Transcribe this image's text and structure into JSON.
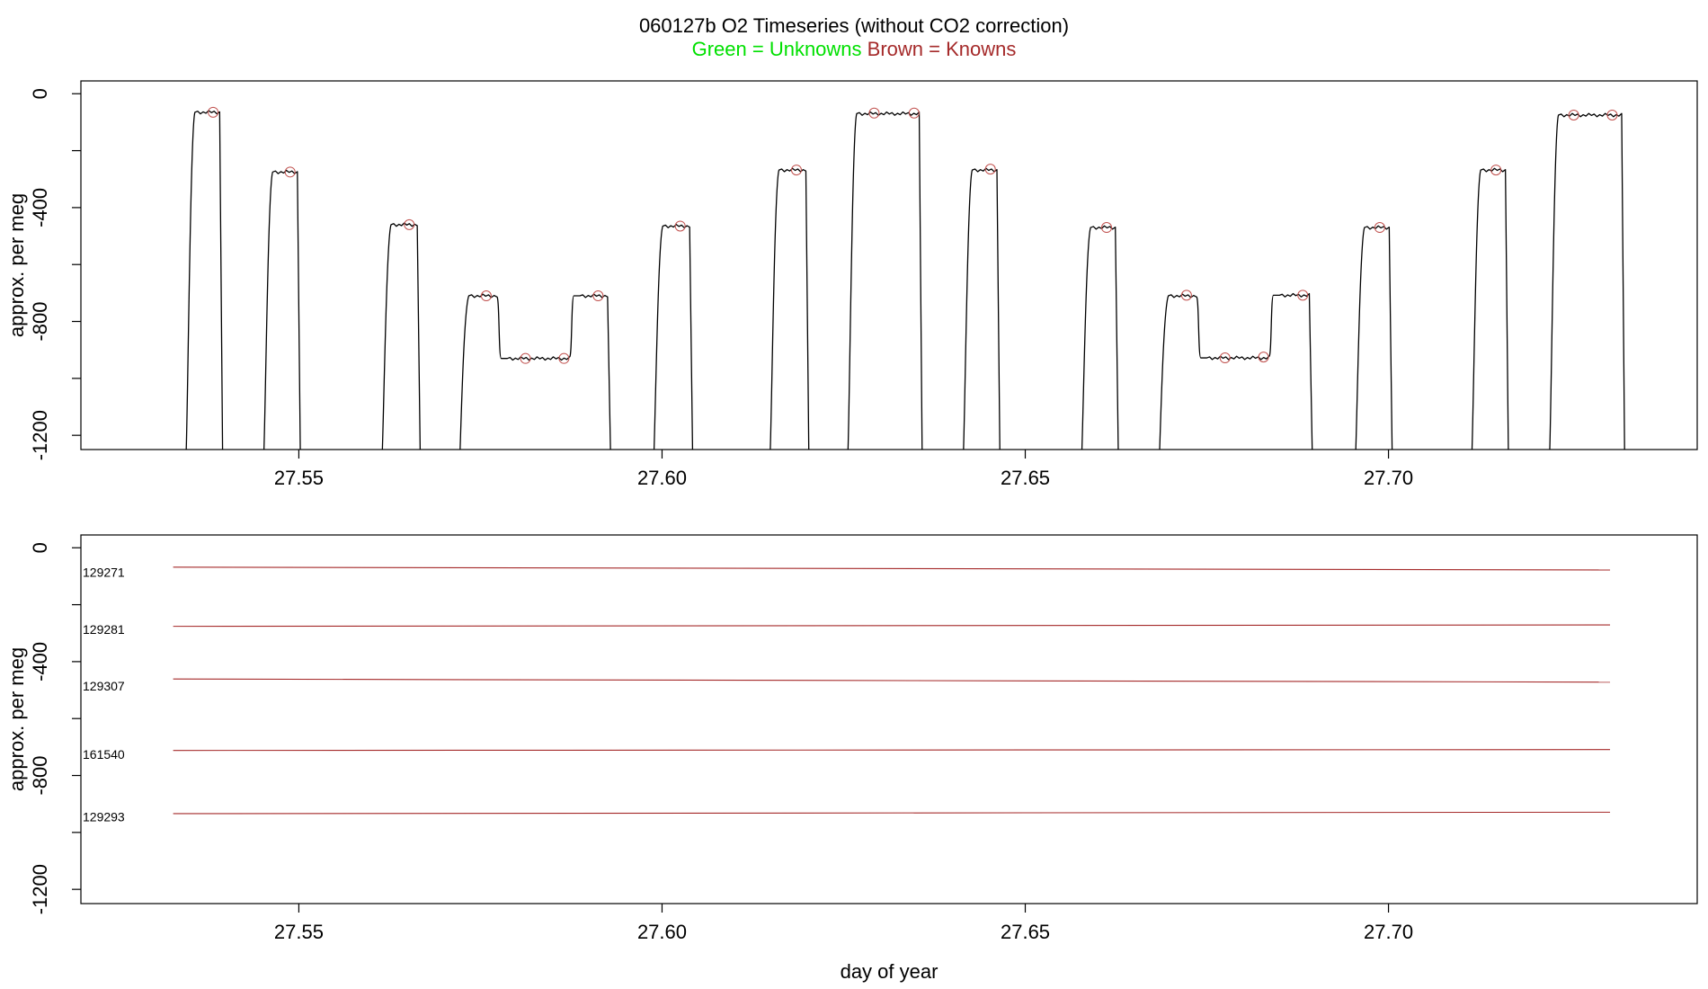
{
  "figure": {
    "title": "060127b   O2 Timeseries (without CO2 correction)",
    "subtitle_unknowns": "Green = Unknowns",
    "subtitle_knowns": "Brown = Knowns",
    "unknowns_color": "#00e000",
    "knowns_color": "#a52a2a",
    "trace_color": "#000000"
  },
  "chart_data": [
    {
      "type": "line",
      "title": "060127b   O2 Timeseries (without CO2 correction)",
      "xlabel": "",
      "ylabel": "approx. per meg",
      "xlim": [
        27.52,
        27.7425
      ],
      "ylim": [
        -1250,
        45
      ],
      "x_ticks": [
        "27.55",
        "27.60",
        "27.65",
        "27.70"
      ],
      "x_tick_values": [
        27.55,
        27.6,
        27.65,
        27.7
      ],
      "y_ticks": [
        "0",
        "-400",
        "-800",
        "-1200"
      ],
      "y_tick_values": [
        0,
        -400,
        -800,
        -1200
      ],
      "y_minor_ticks": [
        -200,
        -600,
        -1000
      ],
      "grid": false,
      "baseline": -1250,
      "series": [
        {
          "plateaus": [
            {
              "x0": 27.5345,
              "x1": 27.5395,
              "levels": [
                [
                  27.5345,
                  27.5395,
                  -65
                ]
              ]
            },
            {
              "x0": 27.5452,
              "x1": 27.5502,
              "levels": [
                [
                  27.5452,
                  27.5502,
                  -275
                ]
              ]
            },
            {
              "x0": 27.5615,
              "x1": 27.5667,
              "levels": [
                [
                  27.5615,
                  27.5667,
                  -460
                ]
              ]
            },
            {
              "x0": 27.5722,
              "x1": 27.5929,
              "levels": [
                [
                  27.5722,
                  27.5775,
                  -710
                ],
                [
                  27.5775,
                  27.5875,
                  -930
                ],
                [
                  27.5875,
                  27.5929,
                  -710
                ]
              ]
            },
            {
              "x0": 27.5989,
              "x1": 27.6042,
              "levels": [
                [
                  27.5989,
                  27.6042,
                  -465
                ]
              ]
            },
            {
              "x0": 27.6149,
              "x1": 27.6202,
              "levels": [
                [
                  27.6149,
                  27.6202,
                  -268
                ]
              ]
            },
            {
              "x0": 27.6256,
              "x1": 27.6358,
              "levels": [
                [
                  27.6256,
                  27.6358,
                  -70
                ]
              ]
            },
            {
              "x0": 27.6415,
              "x1": 27.6465,
              "levels": [
                [
                  27.6415,
                  27.6465,
                  -268
                ]
              ]
            },
            {
              "x0": 27.6578,
              "x1": 27.6628,
              "levels": [
                [
                  27.6578,
                  27.6628,
                  -470
                ]
              ]
            },
            {
              "x0": 27.6685,
              "x1": 27.6895,
              "levels": [
                [
                  27.6685,
                  27.6738,
                  -710
                ],
                [
                  27.6738,
                  27.6838,
                  -928
                ],
                [
                  27.6838,
                  27.6895,
                  -708
                ]
              ]
            },
            {
              "x0": 27.6955,
              "x1": 27.7005,
              "levels": [
                [
                  27.6955,
                  27.7005,
                  -470
                ]
              ]
            },
            {
              "x0": 27.7115,
              "x1": 27.7165,
              "levels": [
                [
                  27.7115,
                  27.7165,
                  -268
                ]
              ]
            },
            {
              "x0": 27.7222,
              "x1": 27.7325,
              "levels": [
                [
                  27.7222,
                  27.7325,
                  -75
                ]
              ]
            }
          ]
        }
      ],
      "markers": [
        {
          "x": 27.5382,
          "y": -65
        },
        {
          "x": 27.5488,
          "y": -275
        },
        {
          "x": 27.5652,
          "y": -460
        },
        {
          "x": 27.5758,
          "y": -710
        },
        {
          "x": 27.5812,
          "y": -930
        },
        {
          "x": 27.5865,
          "y": -930
        },
        {
          "x": 27.5912,
          "y": -710
        },
        {
          "x": 27.6025,
          "y": -465
        },
        {
          "x": 27.6185,
          "y": -268
        },
        {
          "x": 27.6292,
          "y": -68
        },
        {
          "x": 27.6347,
          "y": -68
        },
        {
          "x": 27.6452,
          "y": -265
        },
        {
          "x": 27.6612,
          "y": -470
        },
        {
          "x": 27.6722,
          "y": -708
        },
        {
          "x": 27.6775,
          "y": -928
        },
        {
          "x": 27.6828,
          "y": -925
        },
        {
          "x": 27.6882,
          "y": -708
        },
        {
          "x": 27.6988,
          "y": -470
        },
        {
          "x": 27.7148,
          "y": -268
        },
        {
          "x": 27.7255,
          "y": -75
        },
        {
          "x": 27.7308,
          "y": -75
        }
      ]
    },
    {
      "type": "line",
      "title": "",
      "xlabel": "day of year",
      "ylabel": "approx. per meg",
      "xlim": [
        27.52,
        27.7425
      ],
      "ylim": [
        -1250,
        45
      ],
      "x_ticks": [
        "27.55",
        "27.60",
        "27.65",
        "27.70"
      ],
      "x_tick_values": [
        27.55,
        27.6,
        27.65,
        27.7
      ],
      "y_ticks": [
        "0",
        "-400",
        "-800",
        "-1200"
      ],
      "y_tick_values": [
        0,
        -400,
        -800,
        -1200
      ],
      "y_minor_ticks": [
        -200,
        -600,
        -1000
      ],
      "grid": false,
      "series": [
        {
          "name": "129271",
          "x": [
            27.5327,
            27.7305
          ],
          "y": [
            -68,
            -78
          ]
        },
        {
          "name": "129281",
          "x": [
            27.5327,
            27.7305
          ],
          "y": [
            -276,
            -271
          ]
        },
        {
          "name": "129307",
          "x": [
            27.5327,
            27.7305
          ],
          "y": [
            -461,
            -472
          ]
        },
        {
          "name": "161540",
          "x": [
            27.5327,
            27.7305
          ],
          "y": [
            -712,
            -709
          ]
        },
        {
          "name": "129293",
          "x": [
            27.5327,
            27.7305
          ],
          "y": [
            -934,
            -929
          ]
        }
      ],
      "label_y": [
        -90,
        -290,
        -490,
        -730,
        -950
      ]
    }
  ]
}
